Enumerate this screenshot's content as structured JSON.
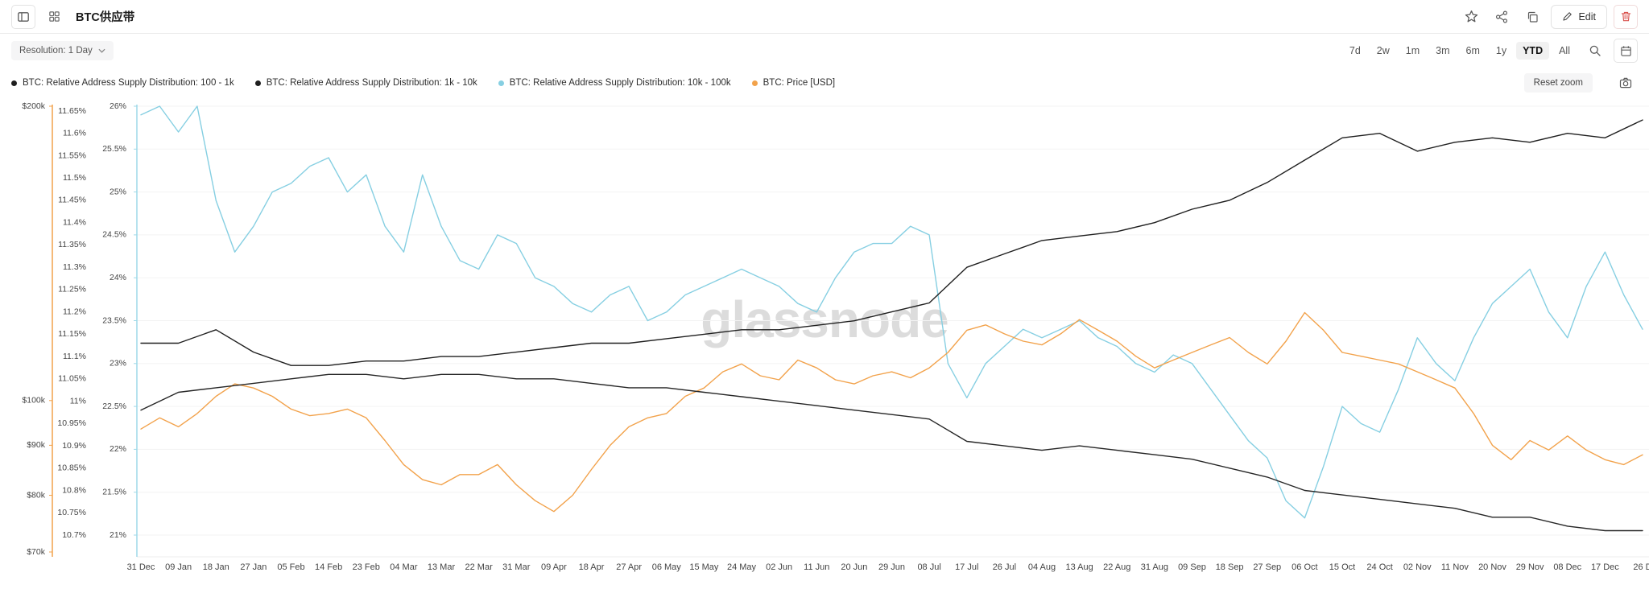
{
  "header": {
    "title": "BTC供应带",
    "edit_label": "Edit"
  },
  "toolbar": {
    "resolution_label": "Resolution: 1 Day",
    "ranges": [
      "7d",
      "2w",
      "1m",
      "3m",
      "6m",
      "1y",
      "YTD",
      "All"
    ],
    "active_range": "YTD",
    "reset_zoom_label": "Reset zoom"
  },
  "watermark": "glassnode",
  "legend": [
    {
      "label": "BTC: Relative Address Supply Distribution: 100 - 1k",
      "color": "#1f1f1f"
    },
    {
      "label": "BTC: Relative Address Supply Distribution: 1k - 10k",
      "color": "#1f1f1f"
    },
    {
      "label": "BTC: Relative Address Supply Distribution: 10k - 100k",
      "color": "#86cfe2"
    },
    {
      "label": "BTC: Price [USD]",
      "color": "#f2a24b"
    }
  ],
  "chart_data": {
    "type": "line",
    "title": "",
    "grid": true,
    "x_tick_labels": [
      "31 Dec",
      "09 Jan",
      "18 Jan",
      "27 Jan",
      "05 Feb",
      "14 Feb",
      "23 Feb",
      "04 Mar",
      "13 Mar",
      "22 Mar",
      "31 Mar",
      "09 Apr",
      "18 Apr",
      "27 Apr",
      "06 May",
      "15 May",
      "24 May",
      "02 Jun",
      "11 Jun",
      "20 Jun",
      "29 Jun",
      "08 Jul",
      "17 Jul",
      "26 Jul",
      "04 Aug",
      "13 Aug",
      "22 Aug",
      "31 Aug",
      "09 Sep",
      "18 Sep",
      "27 Sep",
      "06 Oct",
      "15 Oct",
      "24 Oct",
      "02 Nov",
      "11 Nov",
      "20 Nov",
      "29 Nov",
      "08 Dec",
      "17 Dec",
      "26 D"
    ],
    "axes": {
      "price": {
        "scale": "log",
        "domain": [
          70000,
          200000
        ],
        "tick_labels": [
          "$200k",
          "$100k",
          "$90k",
          "$80k",
          "$70k"
        ],
        "tick_values": [
          200000,
          100000,
          90000,
          80000,
          70000
        ],
        "color": "#f2a24b"
      },
      "pct_a": {
        "scale": "linear",
        "domain": [
          10.7,
          11.65
        ],
        "tick_labels": [
          "11.65%",
          "11.6%",
          "11.55%",
          "11.5%",
          "11.45%",
          "11.4%",
          "11.35%",
          "11.3%",
          "11.25%",
          "11.2%",
          "11.15%",
          "11.1%",
          "11.05%",
          "11%",
          "10.95%",
          "10.9%",
          "10.85%",
          "10.8%",
          "10.75%",
          "10.7%"
        ],
        "tick_values": [
          11.65,
          11.6,
          11.55,
          11.5,
          11.45,
          11.4,
          11.35,
          11.3,
          11.25,
          11.2,
          11.15,
          11.1,
          11.05,
          11,
          10.95,
          10.9,
          10.85,
          10.8,
          10.75,
          10.7
        ],
        "color": "#555555"
      },
      "pct_b": {
        "scale": "linear",
        "domain": [
          21,
          26
        ],
        "tick_labels": [
          "26%",
          "25.5%",
          "25%",
          "24.5%",
          "24%",
          "23.5%",
          "23%",
          "22.5%",
          "22%",
          "21.5%",
          "21%"
        ],
        "tick_values": [
          26,
          25.5,
          25,
          24.5,
          24,
          23.5,
          23,
          22.5,
          22,
          21.5,
          21
        ],
        "color": "#9ed9e8"
      }
    },
    "series": [
      {
        "name": "BTC: Relative Address Supply Distribution: 10k - 100k",
        "axis": "pct_b",
        "color": "#86cfe2",
        "values": [
          25.9,
          26.0,
          25.7,
          26.0,
          24.9,
          24.3,
          24.6,
          25.0,
          25.1,
          25.3,
          25.4,
          25.0,
          25.2,
          24.6,
          24.3,
          25.2,
          24.6,
          24.2,
          24.1,
          24.5,
          24.4,
          24.0,
          23.9,
          23.7,
          23.6,
          23.8,
          23.9,
          23.5,
          23.6,
          23.8,
          23.9,
          24.0,
          24.1,
          24.0,
          23.9,
          23.7,
          23.6,
          24.0,
          24.3,
          24.4,
          24.4,
          24.6,
          24.5,
          23.0,
          22.6,
          23.0,
          23.2,
          23.4,
          23.3,
          23.4,
          23.5,
          23.3,
          23.2,
          23.0,
          22.9,
          23.1,
          23.0,
          22.7,
          22.4,
          22.1,
          21.9,
          21.4,
          21.2,
          21.8,
          22.5,
          22.3,
          22.2,
          22.7,
          23.3,
          23.0,
          22.8,
          23.3,
          23.7,
          23.9,
          24.1,
          23.6,
          23.3,
          23.9,
          24.3,
          23.8,
          23.4
        ]
      },
      {
        "name": "BTC: Price [USD]",
        "axis": "price",
        "color": "#f2a24b",
        "values": [
          93500,
          96000,
          94000,
          97000,
          101000,
          104000,
          103000,
          101000,
          98000,
          96500,
          97000,
          98000,
          96000,
          91000,
          86000,
          83000,
          82000,
          84000,
          84000,
          86000,
          82000,
          79000,
          77000,
          80000,
          85000,
          90000,
          94000,
          96000,
          97000,
          101000,
          103000,
          107000,
          109000,
          106000,
          105000,
          110000,
          108000,
          105000,
          104000,
          106000,
          107000,
          105500,
          108000,
          112000,
          118000,
          119500,
          117000,
          115000,
          114000,
          117000,
          121000,
          118000,
          115000,
          111000,
          108000,
          110000,
          112000,
          114000,
          116000,
          112000,
          109000,
          115000,
          123000,
          118000,
          112000,
          111000,
          110000,
          109000,
          107000,
          105000,
          103000,
          97000,
          90000,
          87000,
          91000,
          89000,
          92000,
          89000,
          87000,
          86000,
          88000
        ]
      },
      {
        "name": "BTC: Relative Address Supply Distribution: 100 - 1k",
        "axis": "pct_a",
        "color": "#1f1f1f",
        "values": [
          11.13,
          11.13,
          11.16,
          11.11,
          11.08,
          11.08,
          11.09,
          11.09,
          11.1,
          11.1,
          11.11,
          11.12,
          11.13,
          11.13,
          11.14,
          11.15,
          11.16,
          11.16,
          11.17,
          11.18,
          11.2,
          11.22,
          11.3,
          11.33,
          11.36,
          11.37,
          11.38,
          11.4,
          11.43,
          11.45,
          11.49,
          11.54,
          11.59,
          11.6,
          11.56,
          11.58,
          11.59,
          11.58,
          11.6,
          11.59,
          11.63
        ]
      },
      {
        "name": "BTC: Relative Address Supply Distribution: 1k - 10k",
        "axis": "pct_a",
        "color": "#262626",
        "values": [
          10.98,
          11.02,
          11.03,
          11.04,
          11.05,
          11.06,
          11.06,
          11.05,
          11.06,
          11.06,
          11.05,
          11.05,
          11.04,
          11.03,
          11.03,
          11.02,
          11.01,
          11.0,
          10.99,
          10.98,
          10.97,
          10.96,
          10.91,
          10.9,
          10.89,
          10.9,
          10.89,
          10.88,
          10.87,
          10.85,
          10.83,
          10.8,
          10.79,
          10.78,
          10.77,
          10.76,
          10.74,
          10.74,
          10.72,
          10.71,
          10.71
        ]
      }
    ]
  }
}
